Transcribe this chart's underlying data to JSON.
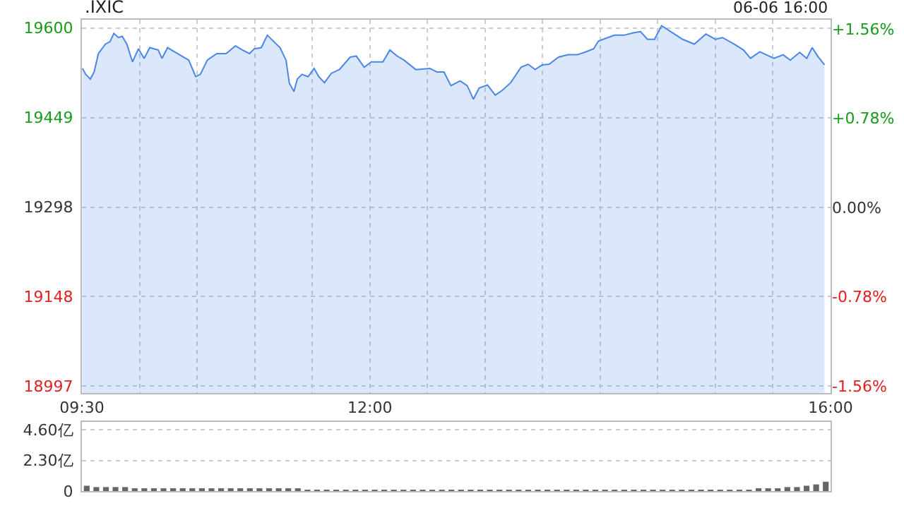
{
  "chart_data": [
    {
      "type": "area",
      "title": ".IXIC",
      "annotations": [
        "06-06 16:00"
      ],
      "color": "#4a86e8",
      "grid": true,
      "x": [
        9.504,
        9.533,
        9.573,
        9.606,
        9.643,
        9.704,
        9.744,
        9.777,
        9.817,
        9.85,
        9.89,
        9.939,
        9.991,
        10.04,
        10.089,
        10.162,
        10.195,
        10.244,
        10.296,
        10.366,
        10.427,
        10.488,
        10.528,
        10.589,
        10.671,
        10.752,
        10.833,
        10.894,
        10.955,
        10.996,
        11.057,
        11.11,
        11.167,
        11.22,
        11.272,
        11.301,
        11.341,
        11.37,
        11.411,
        11.463,
        11.516,
        11.557,
        11.606,
        11.667,
        11.735,
        11.829,
        11.882,
        11.951,
        12.012,
        12.113,
        12.174,
        12.235,
        12.296,
        12.399,
        12.521,
        12.582,
        12.643,
        12.704,
        12.784,
        12.845,
        12.899,
        12.948,
        13.021,
        13.089,
        13.15,
        13.223,
        13.313,
        13.374,
        13.435,
        13.496,
        13.557,
        13.638,
        13.72,
        13.801,
        13.862,
        13.943,
        13.984,
        14.065,
        14.126,
        14.207,
        14.289,
        14.35,
        14.411,
        14.472,
        14.533,
        14.613,
        14.716,
        14.817,
        14.918,
        15.0,
        15.061,
        15.162,
        15.244,
        15.305,
        15.386,
        15.509,
        15.589,
        15.65,
        15.732,
        15.793,
        15.841,
        15.887,
        15.947
      ],
      "values": [
        19532,
        19522,
        19514,
        19526,
        19557,
        19573,
        19577,
        19591,
        19584,
        19586,
        19573,
        19543,
        19565,
        19549,
        19567,
        19563,
        19549,
        19567,
        19561,
        19553,
        19546,
        19518,
        19522,
        19546,
        19557,
        19557,
        19570,
        19563,
        19557,
        19565,
        19567,
        19588,
        19577,
        19567,
        19546,
        19507,
        19493,
        19514,
        19522,
        19518,
        19532,
        19518,
        19508,
        19524,
        19530,
        19551,
        19553,
        19534,
        19543,
        19543,
        19563,
        19553,
        19546,
        19530,
        19532,
        19526,
        19526,
        19503,
        19511,
        19503,
        19480,
        19499,
        19504,
        19487,
        19495,
        19508,
        19534,
        19539,
        19530,
        19538,
        19539,
        19551,
        19555,
        19555,
        19559,
        19565,
        19578,
        19584,
        19588,
        19588,
        19592,
        19594,
        19581,
        19581,
        19604,
        19594,
        19581,
        19573,
        19590,
        19581,
        19584,
        19573,
        19563,
        19549,
        19560,
        19549,
        19555,
        19546,
        19559,
        19549,
        19567,
        19553,
        19538
      ],
      "xlim": [
        9.5,
        16
      ],
      "xticks": [
        {
          "value": 9.5,
          "label": "09:30"
        },
        {
          "value": 10,
          "label": null
        },
        {
          "value": 10.5,
          "label": null
        },
        {
          "value": 11,
          "label": null
        },
        {
          "value": 11.5,
          "label": null
        },
        {
          "value": 12,
          "label": "12:00"
        },
        {
          "value": 12.5,
          "label": null
        },
        {
          "value": 13,
          "label": null
        },
        {
          "value": 13.5,
          "label": null
        },
        {
          "value": 14,
          "label": null
        },
        {
          "value": 14.5,
          "label": null
        },
        {
          "value": 15,
          "label": null
        },
        {
          "value": 15.5,
          "label": null
        },
        {
          "value": 16,
          "label": "16:00"
        }
      ],
      "ylim": [
        18985,
        19614
      ],
      "yticks": [
        19600,
        19449,
        19298,
        19148,
        18997
      ],
      "y2lim": [
        -1.62,
        1.64
      ],
      "y2ticks": [
        {
          "value": 1.56,
          "label": "+1.56%"
        },
        {
          "value": 0.78,
          "label": "+0.78%"
        },
        {
          "value": 0,
          "label": "0.00%"
        },
        {
          "value": -0.78,
          "label": "-0.78%"
        },
        {
          "value": -1.56,
          "label": "-1.56%"
        }
      ]
    },
    {
      "type": "bar",
      "color": "#666666",
      "grid": "y",
      "tick_labels": "y",
      "categories": [
        null,
        null,
        null,
        null,
        null,
        null,
        null,
        null,
        null,
        null,
        null,
        null,
        null,
        null,
        null,
        null,
        null,
        null,
        null,
        null,
        null,
        null,
        null,
        null,
        null,
        null,
        null,
        null,
        null,
        null,
        null,
        null,
        null,
        null,
        null,
        null,
        null,
        null,
        null,
        null,
        null,
        null,
        null,
        null,
        null,
        null,
        null,
        null,
        null,
        null,
        null,
        null,
        null,
        null,
        null,
        null,
        null,
        null,
        null,
        null,
        null,
        null,
        null,
        null,
        null,
        null,
        null,
        null,
        null,
        null,
        null,
        null,
        null,
        null,
        null,
        null,
        null,
        null
      ],
      "values": [
        0.4,
        0.3,
        0.3,
        0.3,
        0.3,
        0.2,
        0.2,
        0.2,
        0.2,
        0.2,
        0.2,
        0.2,
        0.2,
        0.2,
        0.2,
        0.2,
        0.2,
        0.2,
        0.2,
        0.2,
        0.2,
        0.2,
        0.2,
        0.1,
        0.1,
        0.1,
        0.1,
        0.1,
        0.1,
        0.1,
        0.1,
        0.1,
        0.1,
        0.1,
        0.1,
        0.1,
        0.1,
        0.1,
        0.1,
        0.1,
        0.1,
        0.1,
        0.1,
        0.1,
        0.1,
        0.1,
        0.1,
        0.1,
        0.1,
        0.1,
        0.1,
        0.1,
        0.1,
        0.1,
        0.1,
        0.1,
        0.1,
        0.1,
        0.1,
        0.1,
        0.1,
        0.1,
        0.1,
        0.1,
        0.1,
        0.1,
        0.1,
        0.1,
        0.1,
        0.1,
        0.2,
        0.2,
        0.2,
        0.3,
        0.3,
        0.4,
        0.5,
        0.7
      ],
      "ylim": [
        0,
        5.2
      ],
      "yticks": [
        {
          "value": 4.6,
          "label": "4.60亿"
        },
        {
          "value": 2.3,
          "label": "2.30亿"
        },
        0
      ]
    }
  ]
}
